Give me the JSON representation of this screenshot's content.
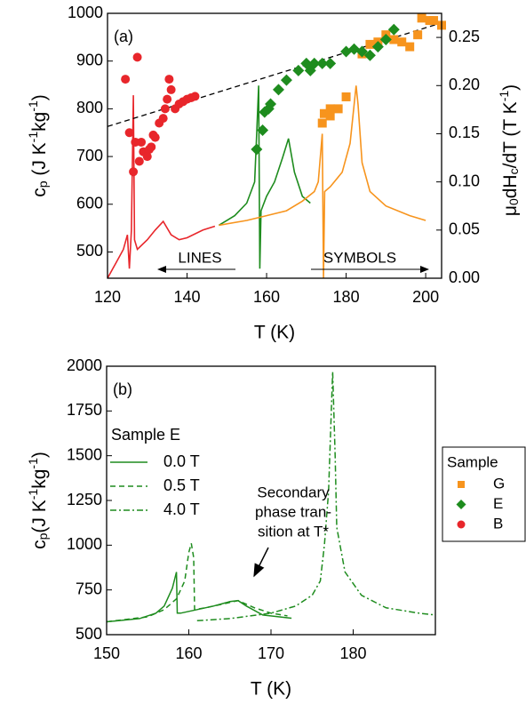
{
  "chart_data": [
    {
      "type": "scatter",
      "panel_label": "(a)",
      "xlabel": "T (K)",
      "ylabel": [
        "c",
        {
          "text": "p",
          "shift": "sub"
        },
        " (J K",
        {
          "text": "-1",
          "shift": "sup"
        },
        "kg",
        {
          "text": "-1",
          "shift": "sup"
        },
        ")"
      ],
      "y2label": [
        "μ",
        {
          "text": "0",
          "shift": "sub"
        },
        "dH",
        {
          "text": "c",
          "shift": "sub"
        },
        "/dT (T K",
        {
          "text": "-1",
          "shift": "sup"
        },
        ")"
      ],
      "xlim": [
        120,
        204
      ],
      "ylim": [
        445,
        1000
      ],
      "y2lim": [
        0,
        0.275
      ],
      "xticks": [
        120,
        140,
        160,
        180,
        200
      ],
      "yticks": [
        500,
        600,
        700,
        800,
        900,
        1000
      ],
      "y2ticks": [
        {
          "value": 0,
          "label": "0.00"
        },
        0.05,
        {
          "value": 0.1,
          "label": "0.10"
        },
        0.15,
        {
          "value": 0.2,
          "label": "0.20"
        },
        0.25
      ],
      "lines_label": "LINES",
      "symbols_label": "SYMBOLS",
      "legend_title": "Sample",
      "series": [
        {
          "name": "G",
          "color": "#f7941d",
          "marker": "square",
          "x": [
            174,
            174.5,
            176,
            176,
            178,
            180,
            184,
            186,
            188,
            190,
            192,
            194,
            196,
            198,
            199,
            201,
            202,
            204
          ],
          "values": [
            770,
            790,
            785,
            800,
            800,
            825,
            915,
            935,
            940,
            955,
            945,
            940,
            930,
            955,
            990,
            985,
            985,
            975
          ]
        },
        {
          "name": "E",
          "color": "#1e8c1e",
          "marker": "diamond",
          "x": [
            157.5,
            159,
            159.5,
            160.5,
            161,
            163,
            165,
            168,
            170,
            171,
            172,
            174,
            176,
            180,
            182,
            184,
            186,
            188,
            190,
            192
          ],
          "values": [
            715,
            755,
            793,
            800,
            810,
            840,
            860,
            880,
            895,
            880,
            895,
            895,
            895,
            920,
            925,
            920,
            912,
            930,
            945,
            966
          ]
        },
        {
          "name": "B",
          "color": "#e8262b",
          "marker": "circle",
          "x": [
            124.5,
            125.5,
            126.5,
            127,
            127.5,
            128,
            128.5,
            129,
            130,
            130.5,
            131,
            131.5,
            132,
            133,
            134,
            134.5,
            135,
            135.5,
            136,
            137,
            138,
            139,
            140,
            141,
            142
          ],
          "values": [
            862,
            750,
            668,
            730,
            908,
            690,
            730,
            710,
            700,
            715,
            720,
            745,
            740,
            770,
            780,
            800,
            820,
            862,
            840,
            800,
            810,
            815,
            820,
            823,
            826
          ]
        }
      ],
      "lines": [
        {
          "color": "#e8262b",
          "axis": "y2",
          "x": [
            120,
            122,
            124,
            125,
            125.5,
            126,
            126.5,
            126.8,
            127.5,
            130,
            132,
            134,
            136,
            138,
            140,
            144,
            147
          ],
          "values": [
            0,
            0.015,
            0.03,
            0.045,
            0.01,
            0.05,
            0.19,
            0.04,
            0.03,
            0.04,
            0.05,
            0.059,
            0.045,
            0.04,
            0.042,
            0.05,
            0.054
          ]
        },
        {
          "color": "#1e8c1e",
          "axis": "y2",
          "x": [
            148,
            152,
            155,
            157,
            157.5,
            158,
            158.3,
            158.6,
            160,
            162,
            164,
            165.5,
            167,
            169,
            171
          ],
          "values": [
            0.055,
            0.065,
            0.078,
            0.1,
            0.15,
            0.2,
            0.01,
            0.07,
            0.085,
            0.1,
            0.125,
            0.145,
            0.11,
            0.085,
            0.078
          ]
        },
        {
          "color": "#f7941d",
          "axis": "y2",
          "x": [
            148,
            155,
            160,
            165,
            169,
            172,
            173,
            174,
            174.3,
            174.6,
            176,
            179,
            181,
            182.5,
            183,
            184,
            186,
            190,
            196,
            200
          ],
          "values": [
            0.055,
            0.06,
            0.065,
            0.07,
            0.08,
            0.09,
            0.1,
            0.15,
            0,
            0.09,
            0.095,
            0.11,
            0.14,
            0.2,
            0.18,
            0.12,
            0.09,
            0.075,
            0.065,
            0.06
          ]
        },
        {
          "color": "#000000",
          "dash": "dashed",
          "x": [
            120,
            204
          ],
          "values": [
            763,
            980
          ]
        }
      ]
    },
    {
      "type": "line",
      "panel_label": "(b)",
      "xlabel": "T (K)",
      "ylabel": [
        "c",
        {
          "text": "p",
          "shift": "sub"
        },
        "(J K",
        {
          "text": "-1",
          "shift": "sup"
        },
        "kg",
        {
          "text": "-1",
          "shift": "sup"
        },
        ")"
      ],
      "xlim": [
        150,
        190
      ],
      "ylim": [
        500,
        2000
      ],
      "xticks": [
        150,
        160,
        170,
        180
      ],
      "yticks": [
        500,
        750,
        1000,
        1250,
        1500,
        1750,
        2000
      ],
      "legend_title": "Sample E",
      "annotation": [
        "Secondary",
        "phase tran-",
        "sition at T*"
      ],
      "series": [
        {
          "name": "0.0 T",
          "color": "#1e8c1e",
          "dash": "solid",
          "x": [
            150,
            154,
            156,
            157,
            158,
            158.5,
            158.6,
            159,
            161,
            163,
            165,
            166,
            167,
            169,
            172.5
          ],
          "values": [
            572,
            590,
            620,
            660,
            760,
            850,
            620,
            620,
            640,
            660,
            685,
            690,
            660,
            610,
            592
          ]
        },
        {
          "name": "0.5 T",
          "color": "#1e8c1e",
          "dash": "dashed",
          "x": [
            150,
            155,
            157,
            158.5,
            159.5,
            160,
            160.3,
            160.6,
            160.7,
            162,
            164,
            166,
            168,
            170,
            172
          ],
          "values": [
            572,
            600,
            640,
            700,
            800,
            960,
            1010,
            930,
            640,
            650,
            670,
            690,
            650,
            620,
            605
          ]
        },
        {
          "name": "4.0 T",
          "color": "#1e8c1e",
          "dash": "dashdot",
          "x": [
            161,
            165,
            170,
            173,
            175,
            176,
            176.5,
            177,
            177.5,
            177.8,
            178,
            179,
            181,
            184,
            188,
            190
          ],
          "values": [
            578,
            590,
            620,
            660,
            720,
            800,
            1000,
            1300,
            1970,
            1500,
            1100,
            850,
            720,
            650,
            620,
            610
          ]
        }
      ]
    }
  ]
}
